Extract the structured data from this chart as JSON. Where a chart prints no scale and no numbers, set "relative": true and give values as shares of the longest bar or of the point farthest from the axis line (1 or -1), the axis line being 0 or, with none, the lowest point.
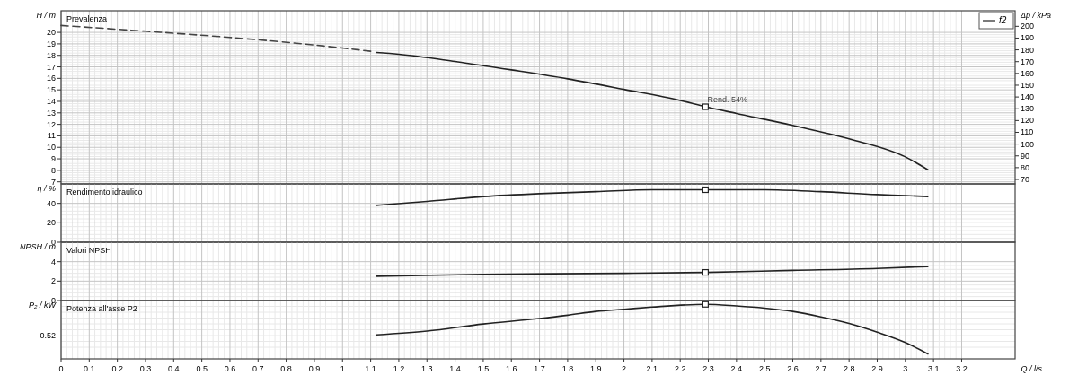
{
  "chart_data": [
    {
      "type": "line",
      "title": "Prevalenza",
      "ylabel": "H / m",
      "y2label": "Δp / kPa",
      "xlim": [
        0,
        3.39
      ],
      "xticks": [
        0,
        0.1,
        0.2,
        0.3,
        0.4,
        0.5,
        0.6,
        0.7,
        0.8,
        0.9,
        1,
        1.1,
        1.2,
        1.3,
        1.4,
        1.5,
        1.6,
        1.7,
        1.8,
        1.9,
        2,
        2.1,
        2.2,
        2.3,
        2.4,
        2.5,
        2.6,
        2.7,
        2.8,
        2.9,
        3,
        3.1,
        3.2
      ],
      "ylim": [
        6.82,
        21.88
      ],
      "yticks": [
        7,
        8,
        9,
        10,
        11,
        12,
        13,
        14,
        15,
        16,
        17,
        18,
        19,
        20
      ],
      "y2lim": [
        66.2,
        213.2
      ],
      "y2ticks": [
        70,
        80,
        90,
        100,
        110,
        120,
        130,
        140,
        150,
        160,
        170,
        180,
        190,
        200
      ],
      "tick_labels": "y",
      "grid": true,
      "legend": "top right",
      "series": [
        {
          "color": "#444444",
          "line_style": "dashed",
          "x": [
            0,
            0.3,
            0.6,
            0.9,
            1.1
          ],
          "values": [
            20.6,
            20.1,
            19.56,
            18.9,
            18.36
          ]
        },
        {
          "name": "f2",
          "color": "#222222",
          "x": [
            1.12,
            1.2,
            1.4,
            1.6,
            1.8,
            2.0,
            2.2,
            2.29,
            2.4,
            2.6,
            2.8,
            3.0,
            3.08
          ],
          "values": [
            18.25,
            18.1,
            17.47,
            16.74,
            15.96,
            15.04,
            14.08,
            13.53,
            12.95,
            11.91,
            10.74,
            9.17,
            8.05
          ]
        },
        {
          "type": "scatter",
          "marker": "square",
          "color": "#222222",
          "x": [
            2.29
          ],
          "values": [
            13.53
          ]
        }
      ],
      "annotations": [
        {
          "text": "Rend.  54%",
          "x": 2.29,
          "y": 13.53
        }
      ]
    },
    {
      "type": "line",
      "title": "Rendimento idraulico",
      "ylabel": "η / %",
      "xlim": [
        0,
        3.39
      ],
      "xticks": [
        0,
        0.1,
        0.2,
        0.3,
        0.4,
        0.5,
        0.6,
        0.7,
        0.8,
        0.9,
        1,
        1.1,
        1.2,
        1.3,
        1.4,
        1.5,
        1.6,
        1.7,
        1.8,
        1.9,
        2,
        2.1,
        2.2,
        2.3,
        2.4,
        2.5,
        2.6,
        2.7,
        2.8,
        2.9,
        3,
        3.1,
        3.2
      ],
      "ylim": [
        0,
        60
      ],
      "yticks": [
        0,
        20,
        40
      ],
      "tick_labels": "y",
      "grid": true,
      "series": [
        {
          "color": "#222222",
          "x": [
            1.12,
            1.3,
            1.5,
            1.7,
            1.9,
            2.1,
            2.29,
            2.5,
            2.7,
            2.9,
            3.0,
            3.08
          ],
          "values": [
            38,
            42,
            47,
            50,
            52,
            54,
            54,
            54,
            52,
            49,
            48,
            47
          ]
        },
        {
          "type": "scatter",
          "marker": "square",
          "color": "#222222",
          "x": [
            2.29
          ],
          "values": [
            54
          ]
        }
      ]
    },
    {
      "type": "line",
      "title": "Valori NPSH",
      "ylabel": "NPSH / m",
      "xlim": [
        0,
        3.39
      ],
      "xticks": [
        0,
        0.1,
        0.2,
        0.3,
        0.4,
        0.5,
        0.6,
        0.7,
        0.8,
        0.9,
        1,
        1.1,
        1.2,
        1.3,
        1.4,
        1.5,
        1.6,
        1.7,
        1.8,
        1.9,
        2,
        2.1,
        2.2,
        2.3,
        2.4,
        2.5,
        2.6,
        2.7,
        2.8,
        2.9,
        3,
        3.1,
        3.2
      ],
      "ylim": [
        0,
        6
      ],
      "yticks": [
        0,
        2,
        4
      ],
      "tick_labels": "y",
      "grid": true,
      "series": [
        {
          "color": "#222222",
          "x": [
            1.12,
            1.5,
            2.0,
            2.29,
            2.6,
            2.9,
            3.08
          ],
          "values": [
            2.5,
            2.7,
            2.8,
            2.9,
            3.1,
            3.3,
            3.5
          ]
        },
        {
          "type": "scatter",
          "marker": "square",
          "color": "#222222",
          "x": [
            2.29
          ],
          "values": [
            2.9
          ]
        }
      ]
    },
    {
      "type": "line",
      "title": "Potenza all'asse P2",
      "ylabel": "P₂ / kW",
      "xlabel": "Q / l/s",
      "relative": true,
      "xlim": [
        0,
        3.39
      ],
      "xticks": [
        0,
        0.1,
        0.2,
        0.3,
        0.4,
        0.5,
        0.6,
        0.7,
        0.8,
        0.9,
        1,
        1.1,
        1.2,
        1.3,
        1.4,
        1.5,
        1.6,
        1.7,
        1.8,
        1.9,
        2,
        2.1,
        2.2,
        2.3,
        2.4,
        2.5,
        2.6,
        2.7,
        2.8,
        2.9,
        3,
        3.1,
        3.2
      ],
      "grid": true,
      "series": [
        {
          "color": "#222222",
          "x": [
            1.12,
            1.3,
            1.5,
            1.7,
            1.8,
            1.9,
            2.0,
            2.1,
            2.29,
            2.4,
            2.5,
            2.6,
            2.7,
            2.8,
            2.9,
            3.0,
            3.08
          ],
          "values": [
            0.44,
            0.51,
            0.64,
            0.74,
            0.8,
            0.87,
            0.91,
            0.95,
            1,
            0.97,
            0.93,
            0.87,
            0.77,
            0.65,
            0.49,
            0.3,
            0.09
          ]
        },
        {
          "type": "scatter",
          "marker": "square",
          "color": "#222222",
          "x": [
            2.29
          ],
          "values": [
            1
          ]
        }
      ],
      "annotations": [
        "0.52"
      ]
    }
  ]
}
